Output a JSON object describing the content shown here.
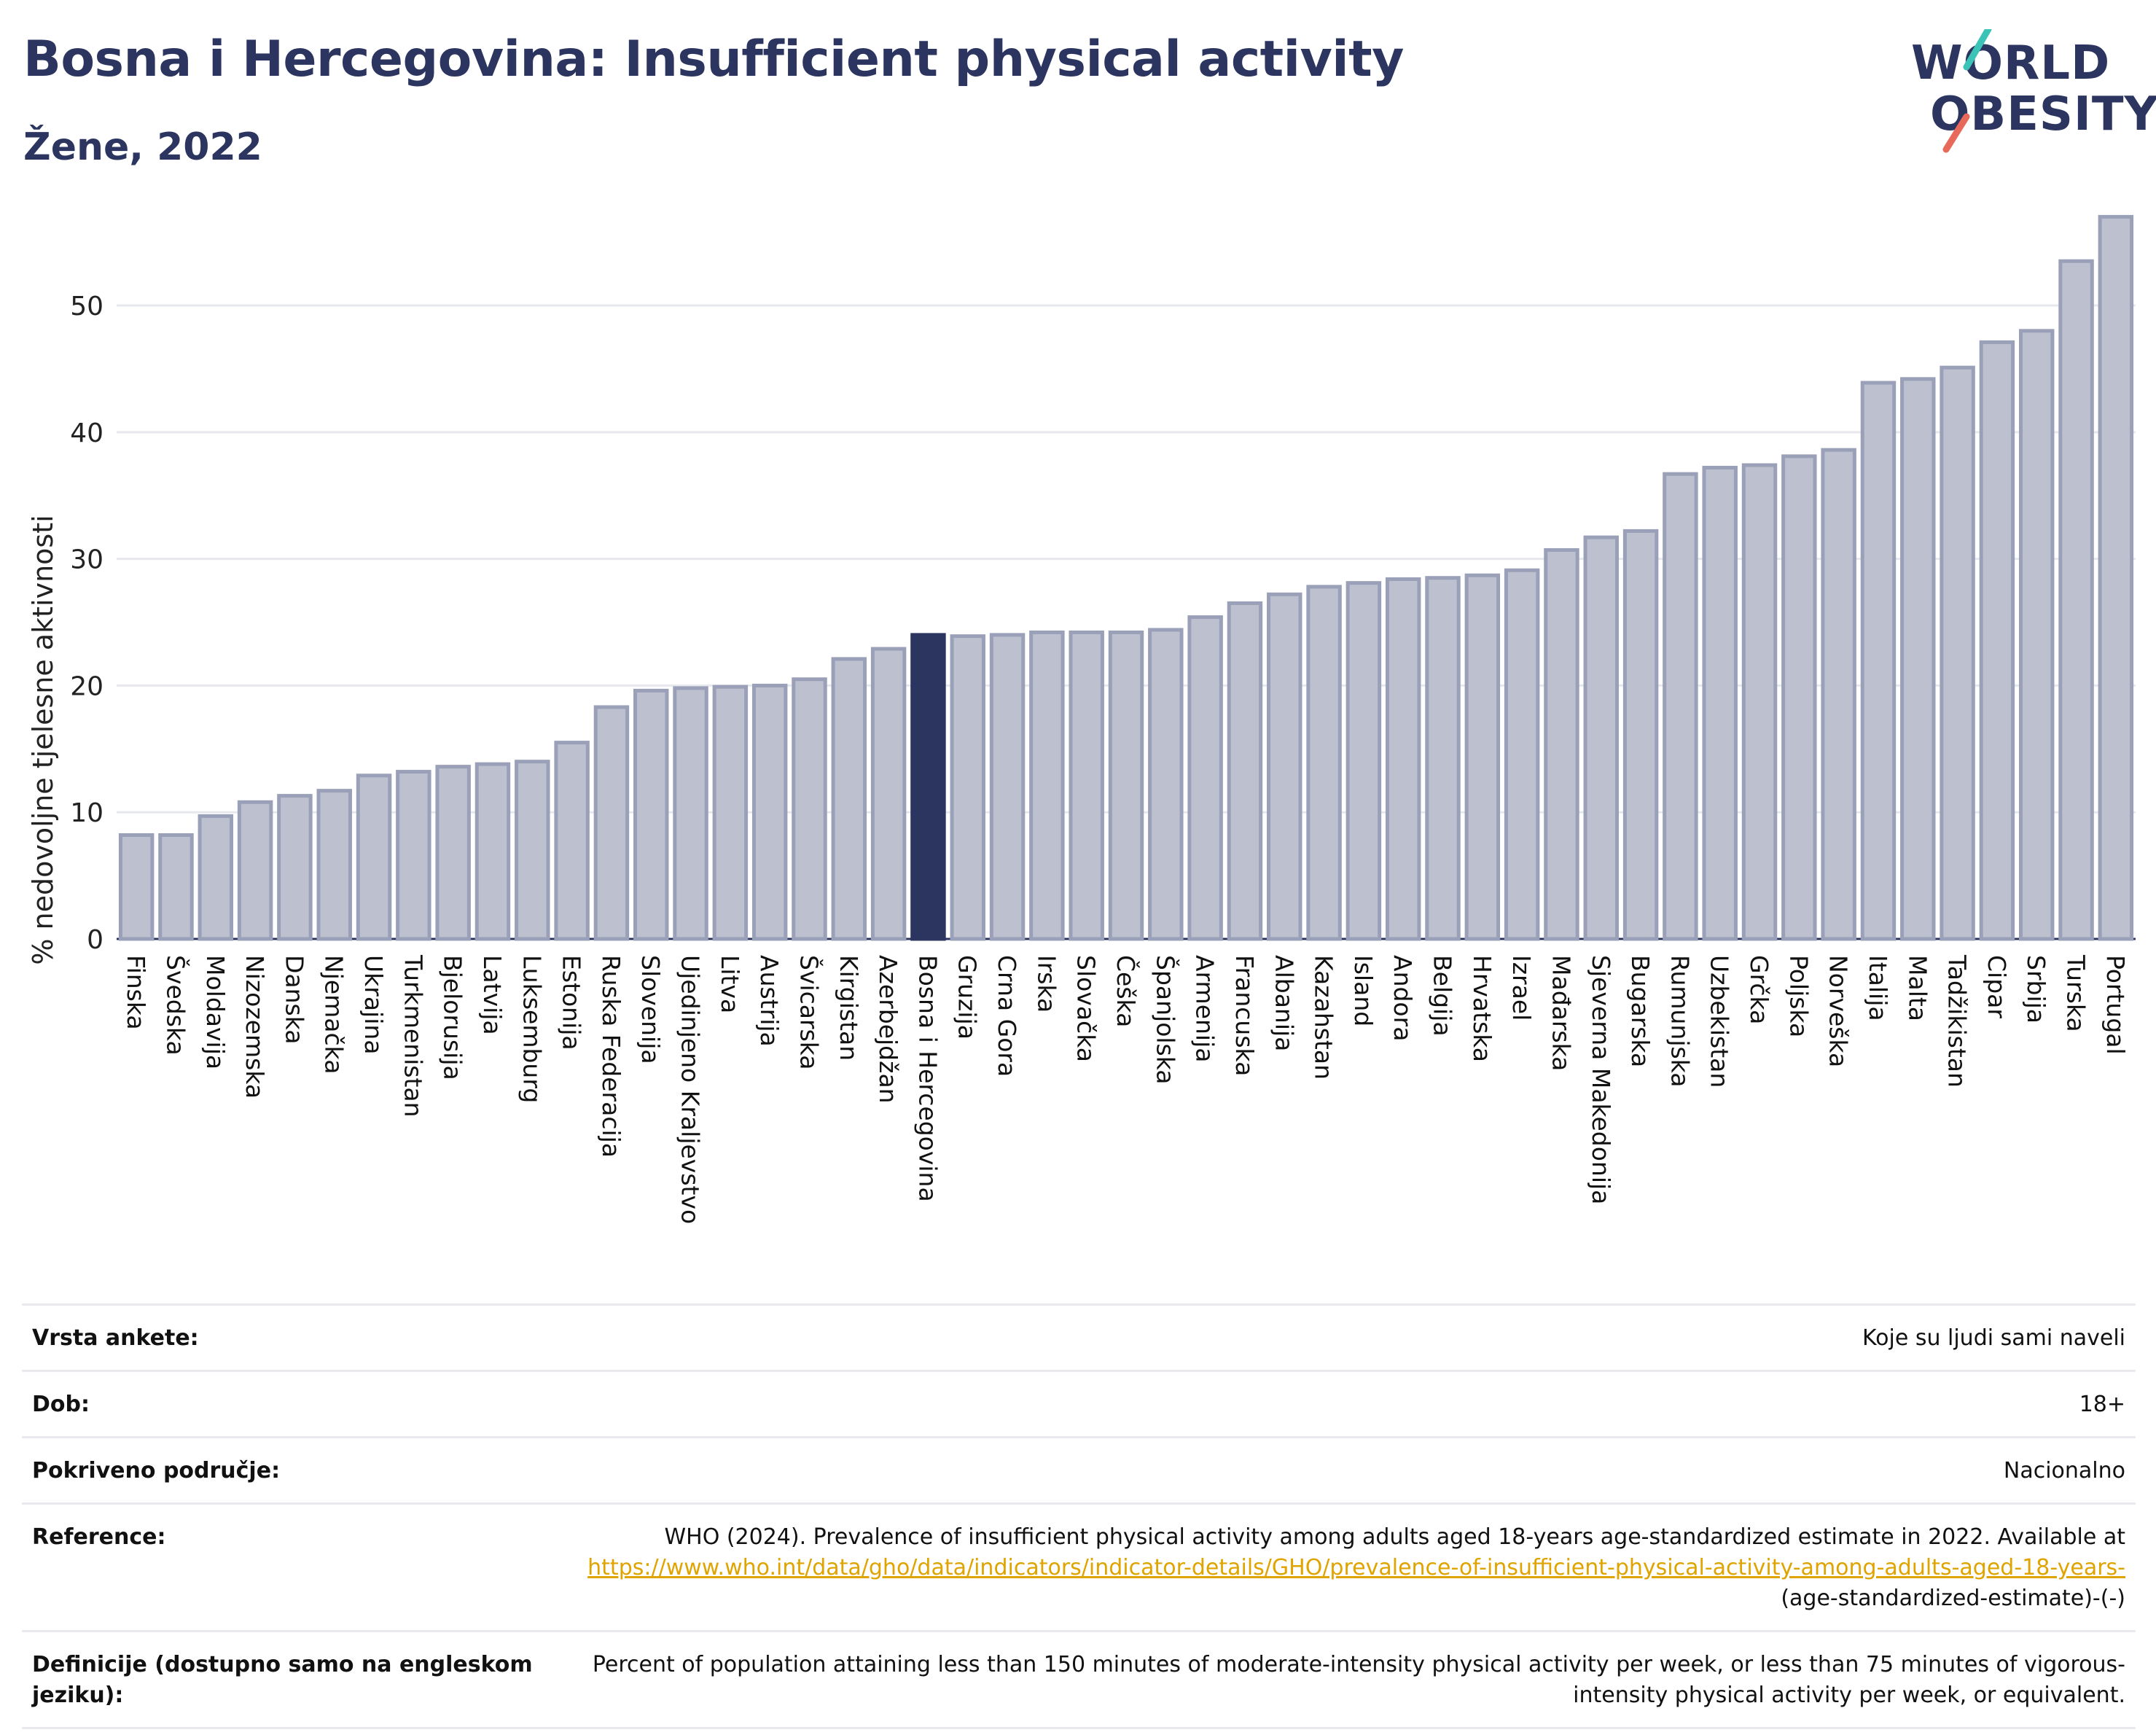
{
  "header": {
    "title": "Bosna i Hercegovina: Insufficient physical activity",
    "subtitle": "Žene, 2022"
  },
  "logo": {
    "line1": "WORLD",
    "line2": "OBESITY",
    "accent_colors": [
      "#3cc3b8",
      "#e8685a"
    ]
  },
  "colors": {
    "bar": "#bcc0cf",
    "bar_border": "#9aa0b7",
    "highlight": "#2b3560",
    "text_title": "#2b3560"
  },
  "chart_data": {
    "type": "bar",
    "ylabel": "% nedovoljne tjelesne aktivnosti",
    "ylim": [
      0,
      58
    ],
    "yticks": [
      0,
      10,
      20,
      30,
      40,
      50
    ],
    "grid": true,
    "highlight": "Bosna i Hercegovina",
    "categories": [
      "Finska",
      "Švedska",
      "Moldavija",
      "Nizozemska",
      "Danska",
      "Njemačka",
      "Ukrajina",
      "Turkmenistan",
      "Bjelorusija",
      "Latvija",
      "Luksemburg",
      "Estonija",
      "Ruska Federacija",
      "Slovenija",
      "Ujedinjeno Kraljevstvo",
      "Litva",
      "Austrija",
      "Švicarska",
      "Kirgistan",
      "Azerbejdžan",
      "Bosna i Hercegovina",
      "Gruzija",
      "Crna Gora",
      "Irska",
      "Slovačka",
      "Češka",
      "Španjolska",
      "Armenija",
      "Francuska",
      "Albanija",
      "Kazahstan",
      "Island",
      "Andora",
      "Belgija",
      "Hrvatska",
      "Izrael",
      "Mađarska",
      "Sjeverna Makedonija",
      "Bugarska",
      "Rumunjska",
      "Uzbekistan",
      "Grčka",
      "Poljska",
      "Norveška",
      "Italija",
      "Malta",
      "Tadžikistan",
      "Cipar",
      "Srbija",
      "Turska",
      "Portugal"
    ],
    "values": [
      8.2,
      8.2,
      9.7,
      10.8,
      11.3,
      11.7,
      12.9,
      13.2,
      13.6,
      13.8,
      14.0,
      15.5,
      18.3,
      19.6,
      19.8,
      19.9,
      20.0,
      20.5,
      22.1,
      22.9,
      24.0,
      23.9,
      24.0,
      24.2,
      24.2,
      24.2,
      24.4,
      25.4,
      26.5,
      27.2,
      27.8,
      28.1,
      28.4,
      28.5,
      28.7,
      29.1,
      30.7,
      31.7,
      32.2,
      36.7,
      37.2,
      37.4,
      38.1,
      38.6,
      43.9,
      44.2,
      45.1,
      47.1,
      48.0,
      53.5,
      57.0
    ]
  },
  "info": {
    "survey_label": "Vrsta ankete:",
    "survey_value": "Koje su ljudi sami naveli",
    "age_label": "Dob:",
    "age_value": "18+",
    "coverage_label": "Pokriveno područje:",
    "coverage_value": "Nacionalno",
    "ref_label": "Reference:",
    "ref_text": "WHO (2024). Prevalence of insufficient physical activity among adults aged 18-years age-standardized estimate in 2022. Available at",
    "ref_link": "https://www.who.int/data/gho/data/indicators/indicator-details/GHO/prevalence-of-insufficient-physical-activity-among-adults-aged-18-years-",
    "ref_tail": "(age-standardized-estimate)-(-)",
    "def_label": "Definicije (dostupno samo na engleskom jeziku):",
    "def_value": "Percent of population attaining less than 150 minutes of moderate-intensity physical activity per week, or less than 75 minutes of vigorous-intensity physical activity per week, or equivalent."
  }
}
